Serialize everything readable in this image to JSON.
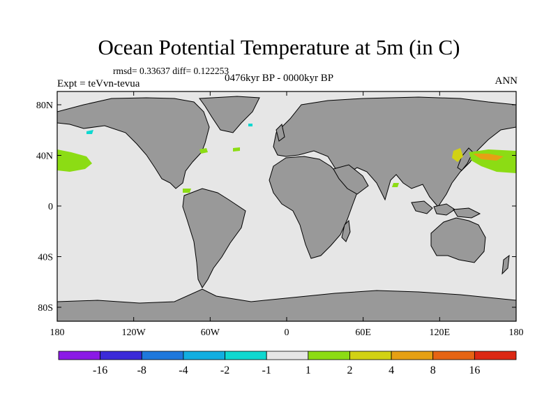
{
  "title": "Ocean Potential Temperature at 5m (in C)",
  "stats": "rmsd= 0.33637 diff= 0.122253",
  "experiment": "Expt = teVvn-tevua",
  "period": "0476kyr BP - 0000kyr BP",
  "season": "ANN",
  "y_axis_labels": [
    "80N",
    "40N",
    "0",
    "40S",
    "80S"
  ],
  "x_axis_labels": [
    "180",
    "120W",
    "60W",
    "0",
    "60E",
    "120E",
    "180"
  ],
  "colorbar": {
    "labels": [
      "-16",
      "-8",
      "-4",
      "-2",
      "-1",
      "1",
      "2",
      "4",
      "8",
      "16"
    ],
    "colors": [
      "#8b1ae6",
      "#3b2ad8",
      "#1f78dc",
      "#12aee0",
      "#0ed8d0",
      "#e6e6e6",
      "#8cdc14",
      "#d2d214",
      "#e6a014",
      "#e66414",
      "#dc2814"
    ]
  },
  "colors": {
    "ocean": "#e6e6e6",
    "land": "#999999",
    "coastline": "#000000"
  }
}
